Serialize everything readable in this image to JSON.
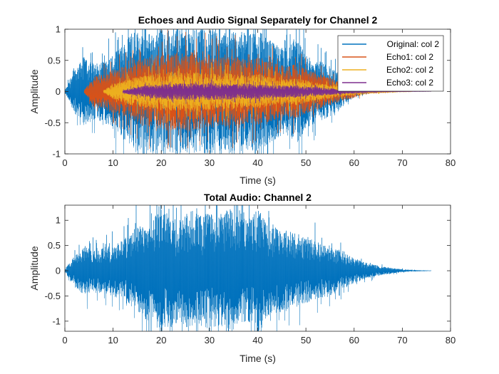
{
  "chart_data": [
    {
      "type": "line",
      "title": "Echoes and Audio Signal Separately for Channel 2",
      "xlabel": "Time (s)",
      "ylabel": "Amplitude",
      "xlim": [
        0,
        80
      ],
      "ylim": [
        -1,
        1
      ],
      "xticks": [
        "0",
        "10",
        "20",
        "30",
        "40",
        "50",
        "60",
        "70",
        "80"
      ],
      "yticks": [
        "1",
        "0.5",
        "0",
        "-0.5",
        "-1"
      ],
      "grid": false,
      "legend_position": "top-right",
      "series": [
        {
          "name": "Original: col 2",
          "color": "#0072BD",
          "x": [
            0,
            2,
            4,
            6,
            8,
            10,
            12,
            14,
            16,
            18,
            20,
            22,
            24,
            26,
            28,
            30,
            32,
            34,
            36,
            38,
            40,
            42,
            44,
            46,
            48,
            50,
            52,
            54,
            56,
            58,
            60,
            62,
            64
          ],
          "envelope": [
            0.02,
            0.35,
            0.55,
            0.45,
            0.5,
            0.6,
            0.75,
            1.0,
            0.95,
            1.0,
            1.0,
            1.0,
            1.0,
            1.0,
            1.0,
            1.0,
            0.98,
            1.0,
            1.0,
            0.9,
            1.0,
            0.85,
            0.75,
            0.7,
            0.85,
            0.6,
            0.5,
            0.45,
            0.35,
            0.2,
            0.1,
            0.04,
            0.01
          ]
        },
        {
          "name": "Echo1: col 2",
          "color": "#D95319",
          "x": [
            4,
            6,
            8,
            10,
            12,
            14,
            16,
            18,
            20,
            22,
            24,
            26,
            28,
            30,
            32,
            34,
            36,
            38,
            40,
            42,
            44,
            46,
            48,
            50,
            52,
            54,
            56,
            58,
            60,
            62,
            64,
            66,
            68
          ],
          "envelope": [
            0.02,
            0.25,
            0.3,
            0.35,
            0.4,
            0.45,
            0.55,
            0.6,
            0.6,
            0.65,
            0.6,
            0.65,
            0.6,
            0.6,
            0.55,
            0.6,
            0.55,
            0.5,
            0.55,
            0.5,
            0.45,
            0.4,
            0.45,
            0.35,
            0.3,
            0.25,
            0.2,
            0.15,
            0.1,
            0.05,
            0.03,
            0.02,
            0.01
          ]
        },
        {
          "name": "Echo2: col 2",
          "color": "#EDB120",
          "x": [
            8,
            10,
            12,
            14,
            16,
            18,
            20,
            22,
            24,
            26,
            28,
            30,
            32,
            34,
            36,
            38,
            40,
            42,
            44,
            46,
            48,
            50,
            52,
            54,
            56,
            58,
            60,
            62,
            64,
            66,
            68,
            70,
            72
          ],
          "envelope": [
            0.02,
            0.12,
            0.18,
            0.22,
            0.25,
            0.28,
            0.3,
            0.32,
            0.3,
            0.32,
            0.3,
            0.3,
            0.28,
            0.3,
            0.28,
            0.25,
            0.28,
            0.25,
            0.22,
            0.2,
            0.22,
            0.18,
            0.15,
            0.12,
            0.1,
            0.08,
            0.06,
            0.04,
            0.03,
            0.02,
            0.015,
            0.01,
            0.005
          ]
        },
        {
          "name": "Echo3: col 2",
          "color": "#7E2F8E",
          "x": [
            12,
            14,
            16,
            18,
            20,
            22,
            24,
            26,
            28,
            30,
            32,
            34,
            36,
            38,
            40,
            42,
            44,
            46,
            48,
            50,
            52,
            54,
            56,
            58,
            60,
            62,
            64,
            66,
            68,
            70,
            72,
            74,
            76
          ],
          "envelope": [
            0.02,
            0.06,
            0.09,
            0.11,
            0.12,
            0.13,
            0.14,
            0.14,
            0.13,
            0.14,
            0.13,
            0.13,
            0.12,
            0.12,
            0.12,
            0.11,
            0.1,
            0.1,
            0.1,
            0.08,
            0.07,
            0.06,
            0.05,
            0.04,
            0.03,
            0.02,
            0.015,
            0.01,
            0.008,
            0.006,
            0.004,
            0.003,
            0.002
          ]
        }
      ]
    },
    {
      "type": "line",
      "title": "Total Audio: Channel 2",
      "xlabel": "Time (s)",
      "ylabel": "Amplitude",
      "xlim": [
        0,
        80
      ],
      "ylim": [
        -1.2,
        1.3
      ],
      "xticks": [
        "0",
        "10",
        "20",
        "30",
        "40",
        "50",
        "60",
        "70",
        "80"
      ],
      "yticks": [
        "1",
        "0.5",
        "0",
        "-0.5",
        "-1"
      ],
      "grid": false,
      "series": [
        {
          "color": "#0072BD",
          "x": [
            0,
            2,
            4,
            6,
            8,
            10,
            12,
            14,
            16,
            18,
            20,
            22,
            24,
            26,
            28,
            30,
            32,
            34,
            36,
            38,
            40,
            42,
            44,
            46,
            48,
            50,
            52,
            54,
            56,
            58,
            60,
            62,
            64,
            66,
            68,
            70,
            72,
            74,
            76
          ],
          "envelope": [
            0.03,
            0.3,
            0.5,
            0.45,
            0.45,
            0.5,
            0.6,
            0.8,
            0.95,
            1.0,
            1.25,
            1.1,
            1.0,
            1.2,
            1.1,
            1.15,
            1.1,
            1.25,
            1.1,
            1.0,
            1.25,
            0.9,
            0.85,
            0.8,
            0.75,
            0.65,
            0.6,
            0.55,
            0.45,
            0.35,
            0.25,
            0.18,
            0.12,
            0.08,
            0.05,
            0.03,
            0.015,
            0.008,
            0.004
          ]
        }
      ]
    }
  ]
}
